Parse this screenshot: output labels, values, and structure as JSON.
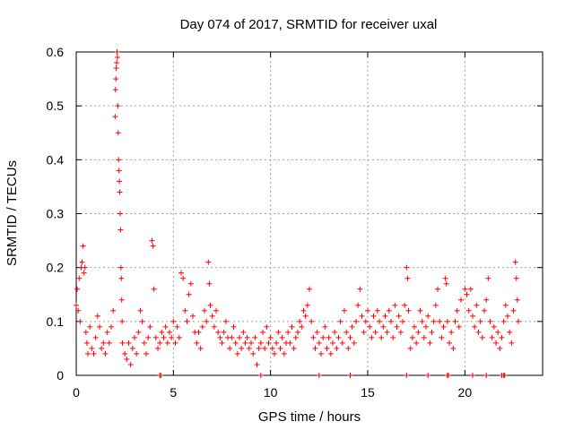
{
  "chart_data": {
    "type": "scatter",
    "title": "Day 074 of 2017, SRMTID for receiver uxal",
    "xlabel": "GPS time / hours",
    "ylabel": "SRMTID / TECUs",
    "xlim": [
      0,
      24
    ],
    "ylim": [
      0,
      0.6
    ],
    "xticks": [
      0,
      5,
      10,
      15,
      20
    ],
    "yticks": [
      0,
      0.1,
      0.2,
      0.3,
      0.4,
      0.5,
      0.6
    ],
    "xtick_labels": [
      "0",
      "5",
      "10",
      "15",
      "20"
    ],
    "ytick_labels": [
      "0",
      "0.1",
      "0.2",
      "0.3",
      "0.4",
      "0.5",
      "0.6"
    ],
    "grid": true,
    "marker": "+",
    "color": "#ff0000",
    "series": [
      {
        "name": "SRMTID",
        "points": [
          [
            0.0,
            0.13
          ],
          [
            0.05,
            0.16
          ],
          [
            0.1,
            0.12
          ],
          [
            0.15,
            0.18
          ],
          [
            0.2,
            0.1
          ],
          [
            0.25,
            0.2
          ],
          [
            0.3,
            0.21
          ],
          [
            0.35,
            0.24
          ],
          [
            0.4,
            0.19
          ],
          [
            0.45,
            0.2
          ],
          [
            0.5,
            0.08
          ],
          [
            0.55,
            0.06
          ],
          [
            0.6,
            0.04
          ],
          [
            0.7,
            0.09
          ],
          [
            0.8,
            0.05
          ],
          [
            0.9,
            0.04
          ],
          [
            1.0,
            0.07
          ],
          [
            1.1,
            0.11
          ],
          [
            1.2,
            0.09
          ],
          [
            1.3,
            0.05
          ],
          [
            1.4,
            0.06
          ],
          [
            1.5,
            0.04
          ],
          [
            1.6,
            0.08
          ],
          [
            1.7,
            0.06
          ],
          [
            1.8,
            0.09
          ],
          [
            1.9,
            0.12
          ],
          [
            2.0,
            0.48
          ],
          [
            2.02,
            0.53
          ],
          [
            2.04,
            0.55
          ],
          [
            2.06,
            0.57
          ],
          [
            2.08,
            0.58
          ],
          [
            2.1,
            0.6
          ],
          [
            2.12,
            0.59
          ],
          [
            2.14,
            0.5
          ],
          [
            2.16,
            0.45
          ],
          [
            2.18,
            0.4
          ],
          [
            2.2,
            0.38
          ],
          [
            2.22,
            0.36
          ],
          [
            2.24,
            0.34
          ],
          [
            2.26,
            0.3
          ],
          [
            2.28,
            0.27
          ],
          [
            2.3,
            0.2
          ],
          [
            2.32,
            0.18
          ],
          [
            2.34,
            0.14
          ],
          [
            2.36,
            0.1
          ],
          [
            2.38,
            0.06
          ],
          [
            2.5,
            0.04
          ],
          [
            2.6,
            0.03
          ],
          [
            2.7,
            0.06
          ],
          [
            2.8,
            0.02
          ],
          [
            2.9,
            0.05
          ],
          [
            3.0,
            0.07
          ],
          [
            3.1,
            0.04
          ],
          [
            3.2,
            0.08
          ],
          [
            3.3,
            0.12
          ],
          [
            3.4,
            0.1
          ],
          [
            3.5,
            0.06
          ],
          [
            3.6,
            0.04
          ],
          [
            3.7,
            0.07
          ],
          [
            3.8,
            0.09
          ],
          [
            3.9,
            0.25
          ],
          [
            3.95,
            0.24
          ],
          [
            4.0,
            0.16
          ],
          [
            4.1,
            0.07
          ],
          [
            4.2,
            0.05
          ],
          [
            4.3,
            0.06
          ],
          [
            4.4,
            0.08
          ],
          [
            4.5,
            0.07
          ],
          [
            4.6,
            0.09
          ],
          [
            4.7,
            0.06
          ],
          [
            4.8,
            0.08
          ],
          [
            4.9,
            0.07
          ],
          [
            5.0,
            0.1
          ],
          [
            5.1,
            0.06
          ],
          [
            5.2,
            0.09
          ],
          [
            5.3,
            0.07
          ],
          [
            5.4,
            0.19
          ],
          [
            5.5,
            0.18
          ],
          [
            5.6,
            0.12
          ],
          [
            5.7,
            0.1
          ],
          [
            5.8,
            0.15
          ],
          [
            5.9,
            0.17
          ],
          [
            6.0,
            0.11
          ],
          [
            6.1,
            0.08
          ],
          [
            6.2,
            0.06
          ],
          [
            6.3,
            0.08
          ],
          [
            6.4,
            0.05
          ],
          [
            6.5,
            0.09
          ],
          [
            6.6,
            0.12
          ],
          [
            6.7,
            0.1
          ],
          [
            6.8,
            0.21
          ],
          [
            6.85,
            0.17
          ],
          [
            6.9,
            0.13
          ],
          [
            7.0,
            0.11
          ],
          [
            7.1,
            0.09
          ],
          [
            7.2,
            0.12
          ],
          [
            7.3,
            0.08
          ],
          [
            7.4,
            0.07
          ],
          [
            7.5,
            0.06
          ],
          [
            7.6,
            0.08
          ],
          [
            7.7,
            0.1
          ],
          [
            7.8,
            0.07
          ],
          [
            7.9,
            0.05
          ],
          [
            8.0,
            0.07
          ],
          [
            8.1,
            0.09
          ],
          [
            8.2,
            0.06
          ],
          [
            8.3,
            0.04
          ],
          [
            8.4,
            0.07
          ],
          [
            8.5,
            0.05
          ],
          [
            8.6,
            0.08
          ],
          [
            8.7,
            0.06
          ],
          [
            8.8,
            0.07
          ],
          [
            8.9,
            0.05
          ],
          [
            9.0,
            0.06
          ],
          [
            9.1,
            0.04
          ],
          [
            9.2,
            0.07
          ],
          [
            9.3,
            0.02
          ],
          [
            9.4,
            0.05
          ],
          [
            9.5,
            0.06
          ],
          [
            9.6,
            0.08
          ],
          [
            9.7,
            0.05
          ],
          [
            9.8,
            0.09
          ],
          [
            9.9,
            0.06
          ],
          [
            10.0,
            0.07
          ],
          [
            10.1,
            0.05
          ],
          [
            10.2,
            0.04
          ],
          [
            10.3,
            0.06
          ],
          [
            10.4,
            0.08
          ],
          [
            10.5,
            0.05
          ],
          [
            10.6,
            0.07
          ],
          [
            10.7,
            0.04
          ],
          [
            10.8,
            0.06
          ],
          [
            10.9,
            0.08
          ],
          [
            11.0,
            0.06
          ],
          [
            11.1,
            0.09
          ],
          [
            11.2,
            0.05
          ],
          [
            11.3,
            0.07
          ],
          [
            11.4,
            0.08
          ],
          [
            11.5,
            0.1
          ],
          [
            11.6,
            0.09
          ],
          [
            11.7,
            0.12
          ],
          [
            11.8,
            0.11
          ],
          [
            11.9,
            0.13
          ],
          [
            12.0,
            0.16
          ],
          [
            12.1,
            0.1
          ],
          [
            12.2,
            0.07
          ],
          [
            12.3,
            0.05
          ],
          [
            12.4,
            0.08
          ],
          [
            12.5,
            0.06
          ],
          [
            12.6,
            0.04
          ],
          [
            12.7,
            0.07
          ],
          [
            12.8,
            0.09
          ],
          [
            12.9,
            0.05
          ],
          [
            13.0,
            0.07
          ],
          [
            13.1,
            0.04
          ],
          [
            13.2,
            0.06
          ],
          [
            13.3,
            0.08
          ],
          [
            13.4,
            0.05
          ],
          [
            13.5,
            0.07
          ],
          [
            13.6,
            0.1
          ],
          [
            13.7,
            0.06
          ],
          [
            13.8,
            0.12
          ],
          [
            13.9,
            0.08
          ],
          [
            14.0,
            0.05
          ],
          [
            14.1,
            0.07
          ],
          [
            14.2,
            0.09
          ],
          [
            14.3,
            0.06
          ],
          [
            14.4,
            0.1
          ],
          [
            14.5,
            0.13
          ],
          [
            14.6,
            0.16
          ],
          [
            14.7,
            0.11
          ],
          [
            14.8,
            0.08
          ],
          [
            14.9,
            0.1
          ],
          [
            15.0,
            0.12
          ],
          [
            15.1,
            0.09
          ],
          [
            15.2,
            0.07
          ],
          [
            15.3,
            0.11
          ],
          [
            15.4,
            0.08
          ],
          [
            15.5,
            0.12
          ],
          [
            15.6,
            0.1
          ],
          [
            15.7,
            0.07
          ],
          [
            15.8,
            0.09
          ],
          [
            15.9,
            0.11
          ],
          [
            16.0,
            0.08
          ],
          [
            16.1,
            0.12
          ],
          [
            16.2,
            0.1
          ],
          [
            16.3,
            0.07
          ],
          [
            16.4,
            0.13
          ],
          [
            16.5,
            0.09
          ],
          [
            16.6,
            0.11
          ],
          [
            16.7,
            0.08
          ],
          [
            16.8,
            0.1
          ],
          [
            16.9,
            0.13
          ],
          [
            17.0,
            0.2
          ],
          [
            17.05,
            0.18
          ],
          [
            17.1,
            0.12
          ],
          [
            17.2,
            0.05
          ],
          [
            17.3,
            0.07
          ],
          [
            17.4,
            0.09
          ],
          [
            17.5,
            0.06
          ],
          [
            17.6,
            0.08
          ],
          [
            17.7,
            0.12
          ],
          [
            17.8,
            0.1
          ],
          [
            17.9,
            0.07
          ],
          [
            18.0,
            0.09
          ],
          [
            18.1,
            0.11
          ],
          [
            18.2,
            0.06
          ],
          [
            18.3,
            0.08
          ],
          [
            18.4,
            0.1
          ],
          [
            18.5,
            0.13
          ],
          [
            18.6,
            0.16
          ],
          [
            18.7,
            0.1
          ],
          [
            18.8,
            0.07
          ],
          [
            18.9,
            0.09
          ],
          [
            19.0,
            0.18
          ],
          [
            19.05,
            0.17
          ],
          [
            19.1,
            0.1
          ],
          [
            19.2,
            0.06
          ],
          [
            19.3,
            0.08
          ],
          [
            19.4,
            0.05
          ],
          [
            19.5,
            0.1
          ],
          [
            19.6,
            0.12
          ],
          [
            19.7,
            0.09
          ],
          [
            19.8,
            0.14
          ],
          [
            20.0,
            0.16
          ],
          [
            20.1,
            0.15
          ],
          [
            20.2,
            0.12
          ],
          [
            20.3,
            0.16
          ],
          [
            20.4,
            0.11
          ],
          [
            20.5,
            0.09
          ],
          [
            20.6,
            0.13
          ],
          [
            20.7,
            0.08
          ],
          [
            20.8,
            0.1
          ],
          [
            20.9,
            0.07
          ],
          [
            21.0,
            0.12
          ],
          [
            21.1,
            0.14
          ],
          [
            21.2,
            0.18
          ],
          [
            21.3,
            0.1
          ],
          [
            21.4,
            0.07
          ],
          [
            21.5,
            0.09
          ],
          [
            21.6,
            0.06
          ],
          [
            21.7,
            0.08
          ],
          [
            21.8,
            0.05
          ],
          [
            21.9,
            0.07
          ],
          [
            22.0,
            0.1
          ],
          [
            22.1,
            0.13
          ],
          [
            22.2,
            0.11
          ],
          [
            22.3,
            0.08
          ],
          [
            22.4,
            0.06
          ],
          [
            22.5,
            0.12
          ],
          [
            22.6,
            0.21
          ],
          [
            22.65,
            0.18
          ],
          [
            22.7,
            0.14
          ],
          [
            22.75,
            0.1
          ],
          [
            4.3,
            0.0
          ],
          [
            4.35,
            0.0
          ],
          [
            9.5,
            0.0
          ],
          [
            12.5,
            0.0
          ],
          [
            14.1,
            0.0
          ],
          [
            17.0,
            0.0
          ],
          [
            18.1,
            0.0
          ],
          [
            19.1,
            0.0
          ],
          [
            19.15,
            0.0
          ],
          [
            20.4,
            0.0
          ],
          [
            21.1,
            0.0
          ],
          [
            21.9,
            0.0
          ],
          [
            22.0,
            0.0
          ],
          [
            22.05,
            0.0
          ]
        ]
      }
    ]
  }
}
